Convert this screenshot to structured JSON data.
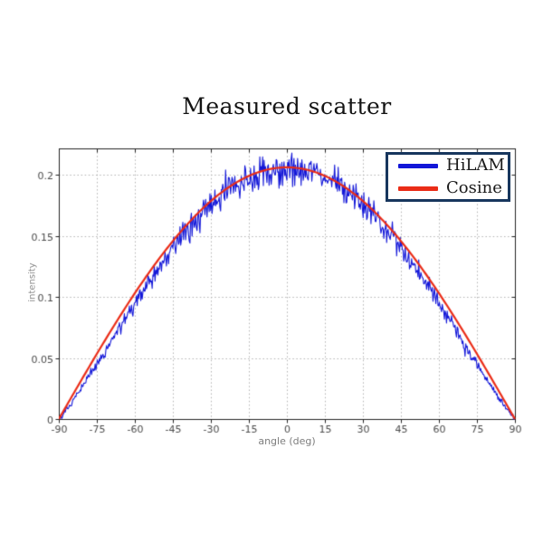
{
  "chart_data": {
    "type": "line",
    "title": "Measured scatter",
    "xlabel": "angle (deg)",
    "ylabel": "intensity",
    "xlim": [
      -90,
      90
    ],
    "ylim": [
      0,
      0.2215
    ],
    "xticks": [
      -90,
      -75,
      -60,
      -45,
      -30,
      -15,
      0,
      15,
      30,
      45,
      60,
      75,
      90
    ],
    "yticks": [
      0,
      0.05,
      0.1,
      0.15,
      0.2
    ],
    "ytick_labels": [
      "0",
      "0.05",
      "0.1",
      "0.15",
      "0.2"
    ],
    "grid": "dotted",
    "grid_color": "#b2b2b2",
    "axis_color": "#222222",
    "tick_label_color": "#4a4a4a",
    "legend": {
      "position": "top-right",
      "border_color": "#17365d",
      "background": "#ffffff"
    },
    "series": [
      {
        "name": "HiLAM",
        "color": "#1216d8",
        "model": "noisy-cosine",
        "amplitude": 0.206,
        "exponent": 1.12,
        "noise_rel_sigma": 0.035,
        "noise_abs_sigma": 0.0013,
        "points": 641,
        "seed": 20240601,
        "line_width": 1.1
      },
      {
        "name": "Cosine",
        "color": "#ea2c17",
        "model": "cosine",
        "amplitude": 0.206,
        "exponent": 1,
        "points": 241,
        "line_width": 2.2
      }
    ]
  }
}
